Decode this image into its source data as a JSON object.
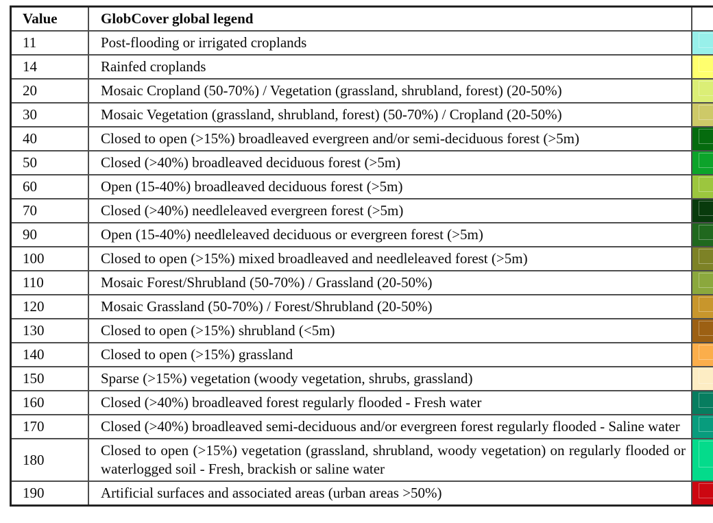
{
  "table": {
    "header": {
      "value_label": "Value",
      "legend_label": "GlobCover global legend",
      "color_label": ""
    },
    "rows": [
      {
        "value": "11",
        "label": "Post-flooding or irrigated croplands",
        "color": "#98F0EA"
      },
      {
        "value": "14",
        "label": "Rainfed croplands",
        "color": "#FFFF6E"
      },
      {
        "value": "20",
        "label": "Mosaic Cropland (50-70%) / Vegetation (grassland, shrubland, forest) (20-50%)",
        "color": "#DBEE76"
      },
      {
        "value": "30",
        "label": "Mosaic Vegetation (grassland, shrubland, forest) (50-70%) / Cropland (20-50%)",
        "color": "#CDC968"
      },
      {
        "value": "40",
        "label": "Closed to open (>15%) broadleaved evergreen and/or semi-deciduous forest (>5m)",
        "color": "#056B0E"
      },
      {
        "value": "50",
        "label": "Closed (>40%) broadleaved deciduous forest (>5m)",
        "color": "#0CA32A"
      },
      {
        "value": "60",
        "label": "Open (15-40%) broadleaved deciduous forest (>5m)",
        "color": "#9CC63E"
      },
      {
        "value": "70",
        "label": "Closed (>40%) needleleaved evergreen forest (>5m)",
        "color": "#083A0C"
      },
      {
        "value": "90",
        "label": "Open (15-40%) needleleaved deciduous or evergreen forest (>5m)",
        "color": "#20681E"
      },
      {
        "value": "100",
        "label": "Closed to open (>15%) mixed broadleaved and needleleaved forest (>5m)",
        "color": "#7D8226"
      },
      {
        "value": "110",
        "label": "Mosaic Forest/Shrubland (50-70%) / Grassland (20-50%)",
        "color": "#8BA83D"
      },
      {
        "value": "120",
        "label": "Mosaic Grassland (50-70%) / Forest/Shrubland (20-50%)",
        "color": "#C8962C"
      },
      {
        "value": "130",
        "label": "Closed to open (>15%) shrubland (<5m)",
        "color": "#9C6013"
      },
      {
        "value": "140",
        "label": "Closed to open (>15%) grassland",
        "color": "#FBAE4B"
      },
      {
        "value": "150",
        "label": "Sparse (>15%) vegetation (woody vegetation, shrubs, grassland)",
        "color": "#FDEDC4"
      },
      {
        "value": "160",
        "label": "Closed (>40%) broadleaved forest regularly flooded - Fresh water",
        "color": "#077D5F"
      },
      {
        "value": "170",
        "label": "Closed (>40%) broadleaved semi-deciduous and/or evergreen forest regularly flooded - Saline water",
        "color": "#089C7D"
      },
      {
        "value": "180",
        "label": "Closed to open (>15%) vegetation (grassland, shrubland, woody vegetation) on regularly flooded or waterlogged soil - Fresh, brackish or saline water",
        "color": "#04DB8B"
      },
      {
        "value": "190",
        "label": "Artificial surfaces and associated areas (urban areas >50%)",
        "color": "#CC0711"
      }
    ]
  }
}
